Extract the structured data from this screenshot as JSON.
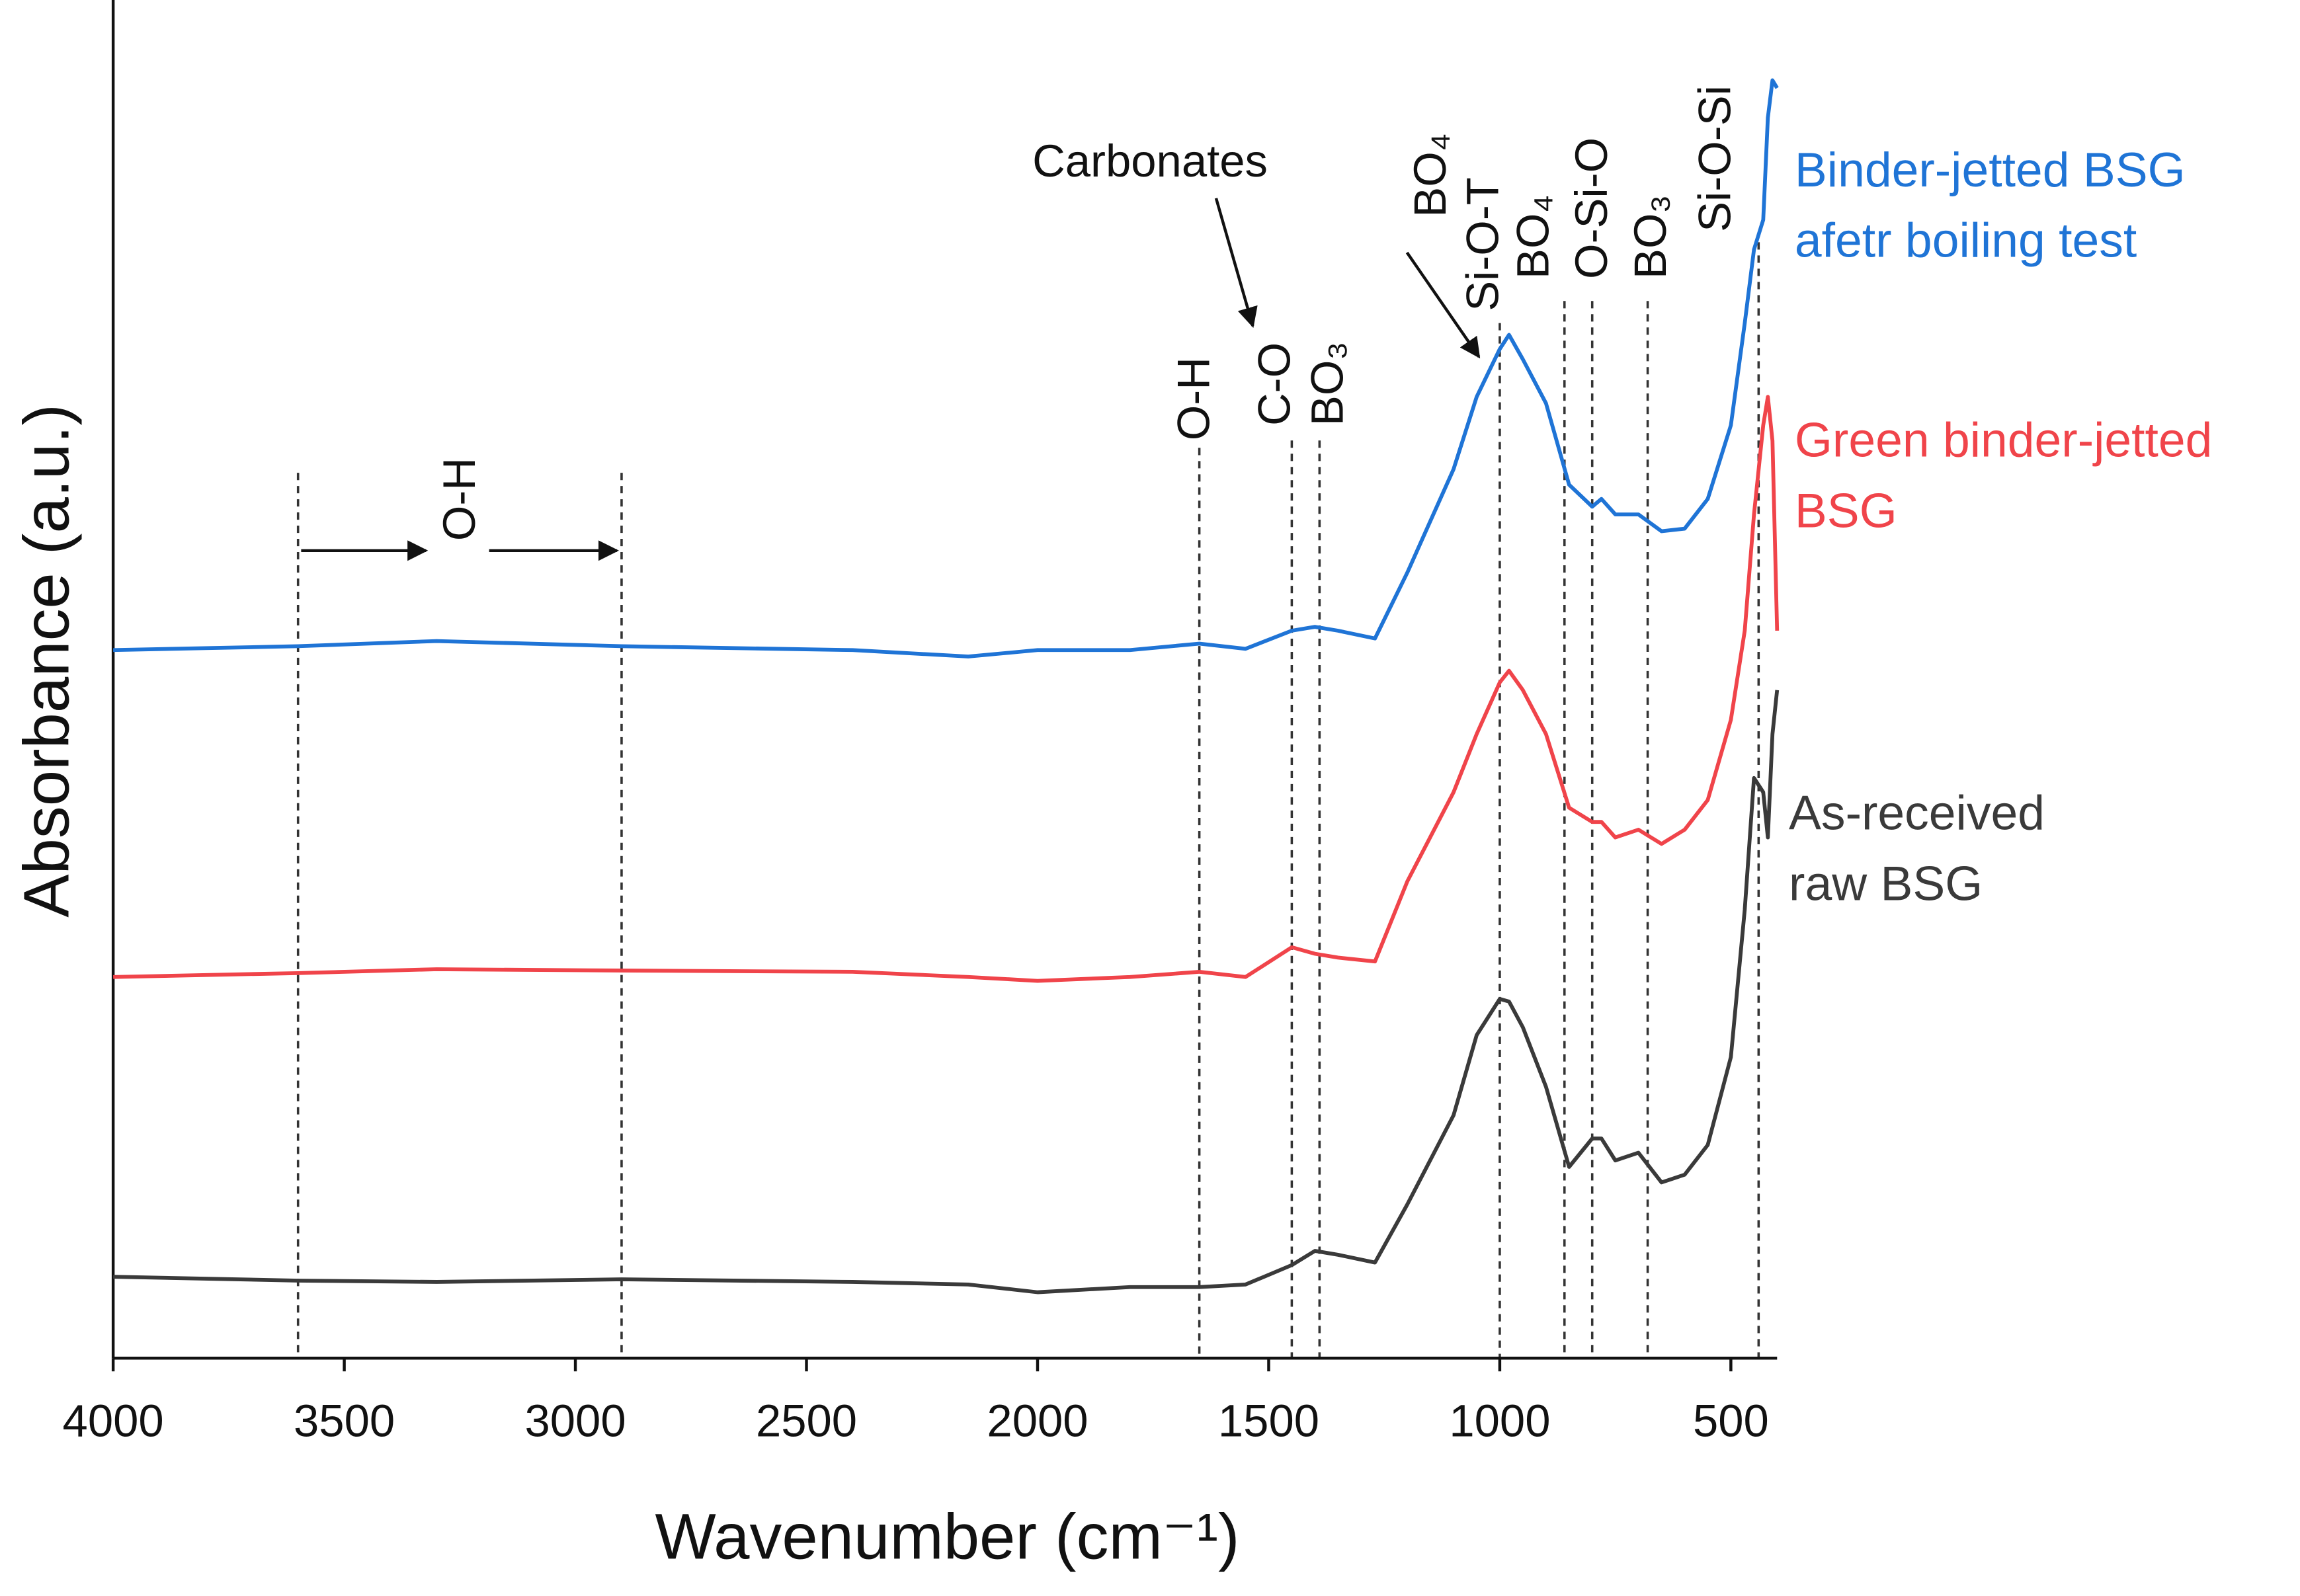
{
  "chart_data": {
    "type": "line",
    "x_label": "Wavenumber (cm⁻¹)",
    "y_label": "Absorbance (a.u.)",
    "xlim": [
      4000,
      400
    ],
    "xticks": [
      4000,
      3500,
      3000,
      2500,
      2000,
      1500,
      1000,
      500
    ],
    "ylim": [
      0,
      1
    ],
    "x": [
      4000,
      3600,
      3300,
      2900,
      2400,
      2150,
      2000,
      1800,
      1650,
      1550,
      1450,
      1400,
      1350,
      1270,
      1200,
      1100,
      1050,
      1000,
      980,
      950,
      900,
      850,
      800,
      780,
      750,
      700,
      650,
      600,
      550,
      500,
      470,
      450,
      430,
      420,
      410,
      400
    ],
    "series": [
      {
        "name": "Binder-jetted BSG\nafetr boiling test",
        "color": "#1f74d6",
        "values": [
          0.548,
          0.551,
          0.555,
          0.551,
          0.548,
          0.543,
          0.548,
          0.548,
          0.553,
          0.549,
          0.563,
          0.566,
          0.563,
          0.557,
          0.608,
          0.688,
          0.744,
          0.781,
          0.792,
          0.773,
          0.739,
          0.676,
          0.659,
          0.665,
          0.653,
          0.653,
          0.64,
          0.642,
          0.665,
          0.722,
          0.801,
          0.858,
          0.881,
          0.96,
          0.989,
          0.983
        ]
      },
      {
        "name": "Green binder-jetted\nBSG",
        "color": "#f0444a",
        "values": [
          0.295,
          0.298,
          0.301,
          0.3,
          0.299,
          0.295,
          0.292,
          0.295,
          0.299,
          0.295,
          0.318,
          0.313,
          0.31,
          0.307,
          0.369,
          0.438,
          0.483,
          0.523,
          0.532,
          0.517,
          0.483,
          0.426,
          0.415,
          0.415,
          0.403,
          0.409,
          0.398,
          0.409,
          0.432,
          0.494,
          0.563,
          0.653,
          0.722,
          0.744,
          0.71,
          0.563
        ]
      },
      {
        "name": "As-received\nraw BSG",
        "color": "#3a3a3a",
        "values": [
          0.063,
          0.06,
          0.059,
          0.061,
          0.059,
          0.057,
          0.051,
          0.055,
          0.055,
          0.057,
          0.072,
          0.083,
          0.08,
          0.074,
          0.119,
          0.188,
          0.25,
          0.278,
          0.276,
          0.256,
          0.21,
          0.148,
          0.17,
          0.17,
          0.153,
          0.159,
          0.136,
          0.142,
          0.165,
          0.233,
          0.347,
          0.449,
          0.438,
          0.403,
          0.483,
          0.517
        ]
      }
    ],
    "markers": [
      3600,
      2900,
      1650,
      1450,
      1390,
      1000,
      860,
      800,
      680,
      440
    ],
    "annotations": [
      "Carbonates",
      "O-H",
      "O-H",
      "C-O",
      "BO₃",
      "BO₄",
      "Si-O-T",
      "BO₄",
      "O-Si-O",
      "BO₃",
      "Si-O-Si"
    ]
  }
}
